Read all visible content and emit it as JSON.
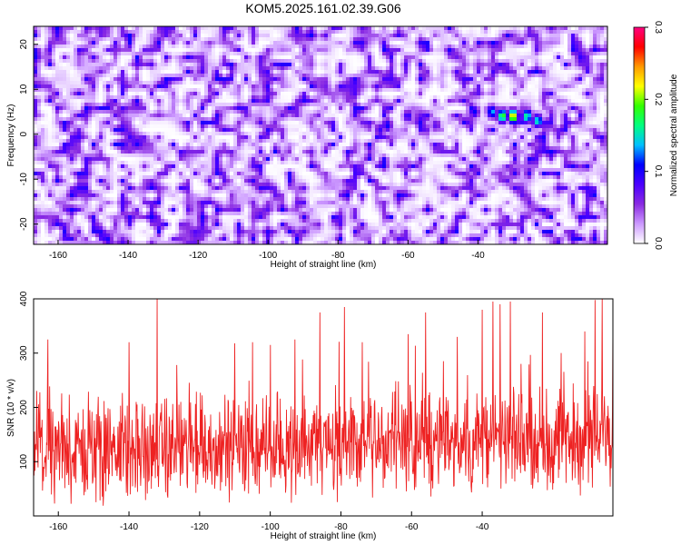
{
  "figure_title": "KOM5.2025.161.02.39.G06",
  "chart_data": [
    {
      "type": "heatmap",
      "xlabel": "Height of straight line (km)",
      "ylabel": "Frequency (Hz)",
      "xlim": [
        -167,
        -3
      ],
      "ylim": [
        -24.5,
        24
      ],
      "x_ticks": [
        -160,
        -140,
        -120,
        -100,
        -80,
        -60,
        -40
      ],
      "y_ticks": [
        -20,
        -10,
        0,
        10,
        20
      ],
      "colorbar": {
        "label": "Normalized spectral amplitude",
        "range": [
          0.0,
          0.3
        ],
        "ticks": [
          0.0,
          0.1,
          0.2,
          0.3
        ],
        "tick_labels": [
          "0.0",
          "0.1",
          "0.2",
          "0.3"
        ],
        "colors": [
          "#ffffff",
          "#cc99ff",
          "#8a2be2",
          "#4b00ff",
          "#0000ff",
          "#00bfff",
          "#00ff80",
          "#33ff00",
          "#ffff00",
          "#ff9900",
          "#ff0000",
          "#ff0080"
        ]
      },
      "background_level": 0.04,
      "hot_spots": [
        {
          "x": -30,
          "y": 4,
          "amplitude": 0.26
        },
        {
          "x": -33,
          "y": 4,
          "amplitude": 0.22
        },
        {
          "x": -26,
          "y": 4,
          "amplitude": 0.21
        },
        {
          "x": -23,
          "y": 3,
          "amplitude": 0.18
        },
        {
          "x": -36,
          "y": 5,
          "amplitude": 0.15
        },
        {
          "x": -41,
          "y": 5,
          "amplitude": 0.12
        },
        {
          "x": -66,
          "y": 2,
          "amplitude": 0.13
        },
        {
          "x": -68,
          "y": 1,
          "amplitude": 0.11
        },
        {
          "x": -60,
          "y": 4,
          "amplitude": 0.1
        },
        {
          "x": -52,
          "y": 2,
          "amplitude": 0.09
        }
      ]
    },
    {
      "type": "line",
      "xlabel": "Height of straight line (km)",
      "ylabel": "SNR (10 * v/v)",
      "xlim": [
        -167,
        -3
      ],
      "ylim": [
        0,
        400
      ],
      "x_ticks": [
        -160,
        -140,
        -120,
        -100,
        -80,
        -60,
        -40
      ],
      "y_ticks": [
        100,
        200,
        300,
        400
      ],
      "color": "#ee2222",
      "baseline_level": 115,
      "noise_amplitude": 90,
      "peaks": [
        {
          "x": -132,
          "y": 400
        },
        {
          "x": -6,
          "y": 400
        },
        {
          "x": -8,
          "y": 398
        },
        {
          "x": -32,
          "y": 395
        },
        {
          "x": -35,
          "y": 390
        },
        {
          "x": -37,
          "y": 395
        },
        {
          "x": -79,
          "y": 385
        },
        {
          "x": -86,
          "y": 375
        },
        {
          "x": -40,
          "y": 380
        },
        {
          "x": -56,
          "y": 375
        },
        {
          "x": -23,
          "y": 375
        },
        {
          "x": -3,
          "y": 345
        },
        {
          "x": -11,
          "y": 340
        },
        {
          "x": -163,
          "y": 325
        },
        {
          "x": -93,
          "y": 325
        },
        {
          "x": -105,
          "y": 320
        },
        {
          "x": -140,
          "y": 320
        },
        {
          "x": -110,
          "y": 318
        },
        {
          "x": -100,
          "y": 315
        },
        {
          "x": -47,
          "y": 330
        },
        {
          "x": -74,
          "y": 320
        },
        {
          "x": -61,
          "y": 335
        }
      ]
    }
  ]
}
